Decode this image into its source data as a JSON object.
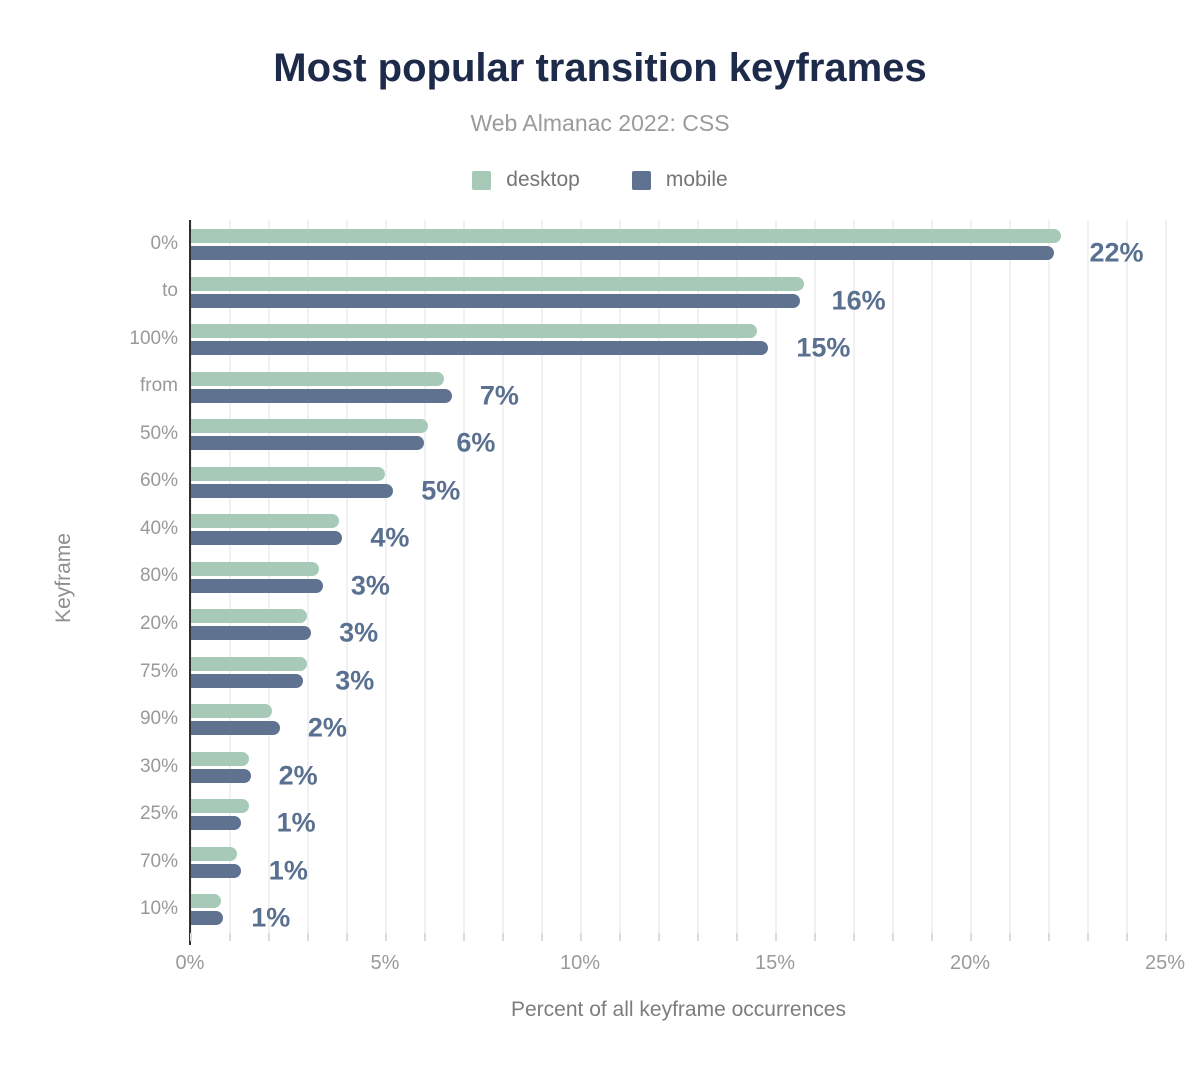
{
  "title": "Most popular transition keyframes",
  "subtitle": "Web Almanac 2022: CSS",
  "colors": {
    "title": "#1e2a4a",
    "desktop_bar": "#a7c9b8",
    "mobile_bar": "#5f7290",
    "value_label": "#5a7090",
    "axis_line": "#2f2f2f",
    "gridline": "#f1f1f1",
    "muted_text": "#9b9b9b"
  },
  "chart_data": {
    "type": "bar",
    "orientation": "horizontal",
    "title": "Most popular transition keyframes",
    "subtitle": "Web Almanac 2022: CSS",
    "xlabel": "Percent of all keyframe occurrences",
    "ylabel": "Keyframe",
    "xlim": [
      0,
      25
    ],
    "x_ticks": [
      "0%",
      "5%",
      "10%",
      "15%",
      "20%",
      "25%"
    ],
    "grid": "vertical lines every 1%",
    "legend_position": "top",
    "categories": [
      "0%",
      "to",
      "100%",
      "from",
      "50%",
      "60%",
      "40%",
      "80%",
      "20%",
      "75%",
      "90%",
      "30%",
      "25%",
      "70%",
      "10%"
    ],
    "series": [
      {
        "name": "desktop",
        "color": "#a7c9b8",
        "values": [
          22.3,
          15.7,
          14.5,
          6.5,
          6.1,
          5.0,
          3.8,
          3.3,
          3.0,
          3.0,
          2.1,
          1.5,
          1.5,
          1.2,
          0.8
        ]
      },
      {
        "name": "mobile",
        "color": "#5f7290",
        "values": [
          22.1,
          15.6,
          14.8,
          6.7,
          6.0,
          5.2,
          3.9,
          3.4,
          3.1,
          2.9,
          2.3,
          1.55,
          1.3,
          1.3,
          0.85
        ]
      }
    ],
    "value_labels": [
      "22%",
      "16%",
      "15%",
      "7%",
      "6%",
      "5%",
      "4%",
      "3%",
      "3%",
      "3%",
      "2%",
      "2%",
      "1%",
      "1%",
      "1%"
    ]
  }
}
